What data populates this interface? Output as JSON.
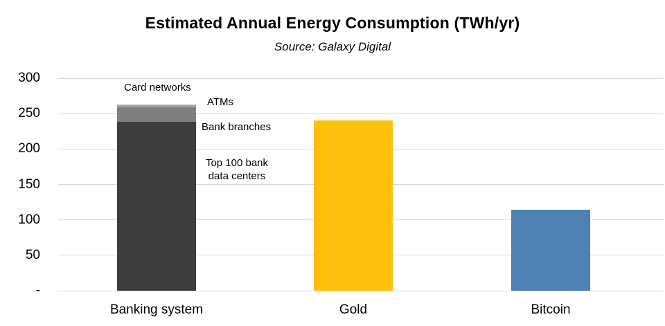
{
  "chart_data": {
    "type": "bar",
    "stacked": true,
    "title": "Estimated Annual Energy Consumption (TWh/yr)",
    "subtitle": "Source: Galaxy Digital",
    "xlabel": "",
    "ylabel": "",
    "ylim": [
      0,
      300
    ],
    "grid": true,
    "legend": false,
    "categories": [
      "Banking system",
      "Gold",
      "Bitcoin"
    ],
    "y_ticks": [
      {
        "value": 300,
        "label": "300"
      },
      {
        "value": 250,
        "label": "250"
      },
      {
        "value": 200,
        "label": "200"
      },
      {
        "value": 150,
        "label": "150"
      },
      {
        "value": 100,
        "label": "100"
      },
      {
        "value": 50,
        "label": "50"
      },
      {
        "value": 0,
        "label": "-"
      }
    ],
    "bars": [
      {
        "category": "Banking system",
        "total": 263.7,
        "segments": [
          {
            "label": "Top 100 bank data centers",
            "value": 238.9,
            "color": "#3d3d3d"
          },
          {
            "label": "Bank branches",
            "value": 19.7,
            "color": "#7f7f7f"
          },
          {
            "label": "ATMs",
            "value": 2.9,
            "color": "#a3a3a3"
          },
          {
            "label": "Card networks",
            "value": 2.2,
            "color": "#dfdfdf"
          }
        ]
      },
      {
        "category": "Gold",
        "total": 240.6,
        "segments": [
          {
            "label": "Gold",
            "value": 240.6,
            "color": "#FDC00D"
          }
        ]
      },
      {
        "category": "Bitcoin",
        "total": 113.9,
        "segments": [
          {
            "label": "Bitcoin",
            "value": 113.9,
            "color": "#4E81B4"
          }
        ]
      }
    ]
  },
  "annotations": {
    "card_networks": "Card networks",
    "atms": "ATMs",
    "bank_branches": "Bank branches",
    "data_centers": "Top 100 bank\ndata centers"
  },
  "colors": {
    "gridline": "#d9d9d9",
    "dark_gray": "#3d3d3d",
    "mid_gray": "#7f7f7f",
    "light_gray": "#a3a3a3",
    "lighter_gray": "#dfdfdf",
    "gold": "#FDC00D",
    "bitcoin_blue": "#4E81B4"
  }
}
